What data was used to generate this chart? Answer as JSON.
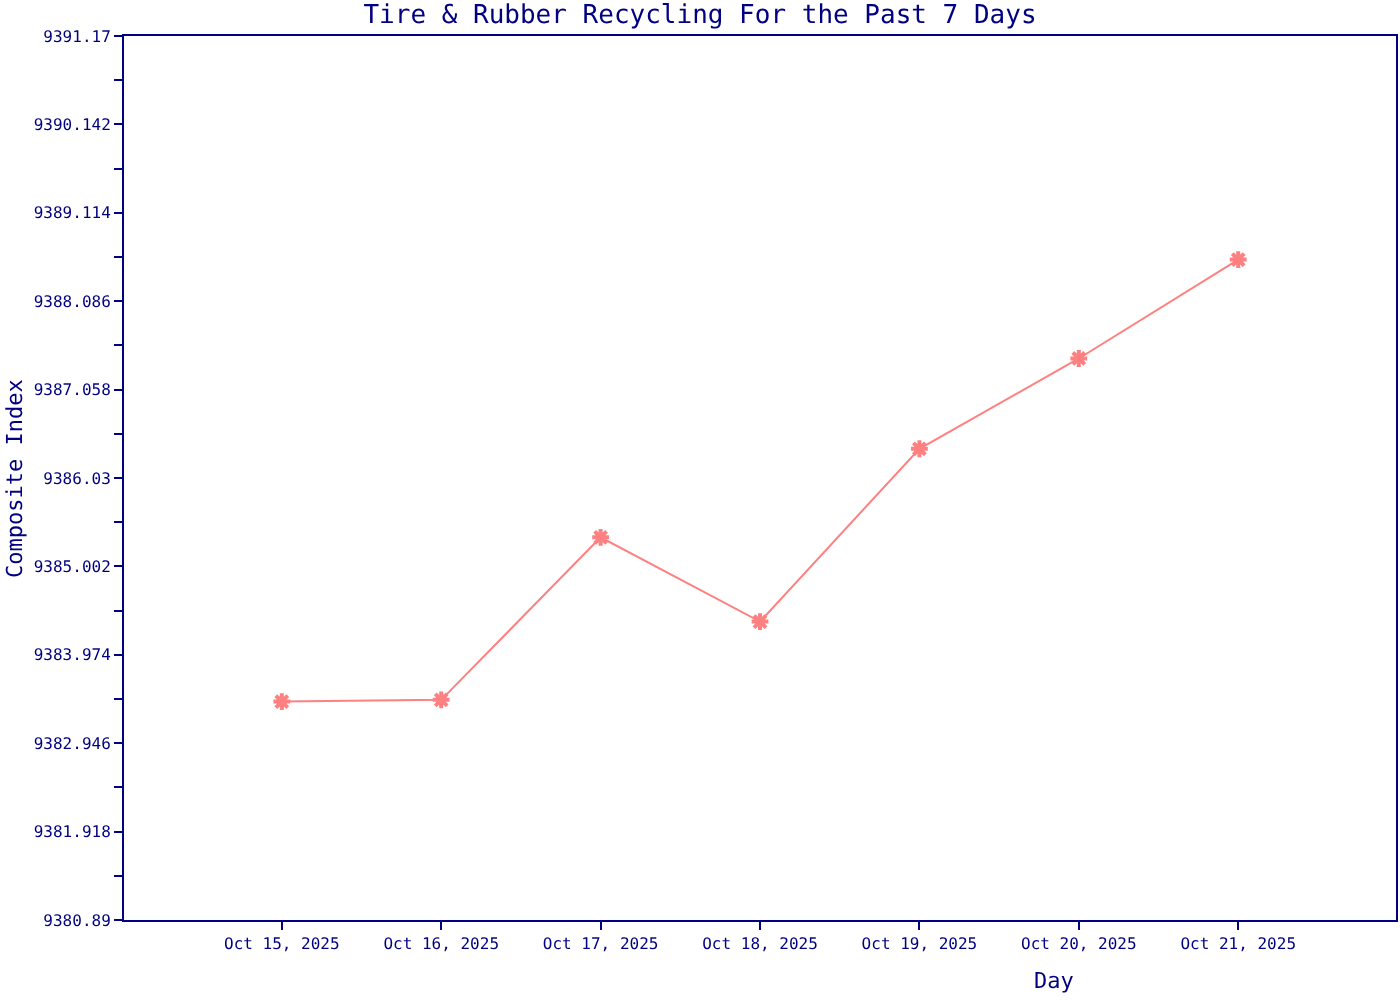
{
  "chart_data": {
    "type": "line",
    "title": "Tire & Rubber Recycling For the Past 7 Days",
    "xlabel": "Day",
    "ylabel": "Composite Index",
    "categories": [
      "Oct 15, 2025",
      "Oct 16, 2025",
      "Oct 17, 2025",
      "Oct 18, 2025",
      "Oct 19, 2025",
      "Oct 20, 2025",
      "Oct 21, 2025"
    ],
    "series": [
      {
        "color": "#ff8080",
        "values": [
          9383.43,
          9383.45,
          9385.34,
          9384.36,
          9386.37,
          9387.42,
          9388.57
        ]
      }
    ],
    "ylim": [
      9380.89,
      9391.17
    ],
    "yticks": [
      9380.89,
      {
        "value": 9381.404,
        "label": null
      },
      9381.918,
      {
        "value": 9382.432,
        "label": null
      },
      9382.946,
      {
        "value": 9383.46,
        "label": null
      },
      9383.974,
      {
        "value": 9384.488,
        "label": null
      },
      9385.002,
      {
        "value": 9385.516,
        "label": null
      },
      9386.03,
      {
        "value": 9386.544,
        "label": null
      },
      9387.058,
      {
        "value": 9387.572,
        "label": null
      },
      9388.086,
      {
        "value": 9388.6,
        "label": null
      },
      9389.114,
      {
        "value": 9389.628,
        "label": null
      },
      9390.142,
      {
        "value": 9390.656,
        "label": null
      },
      9391.17
    ],
    "marker": "cross",
    "line_style": "solid"
  }
}
